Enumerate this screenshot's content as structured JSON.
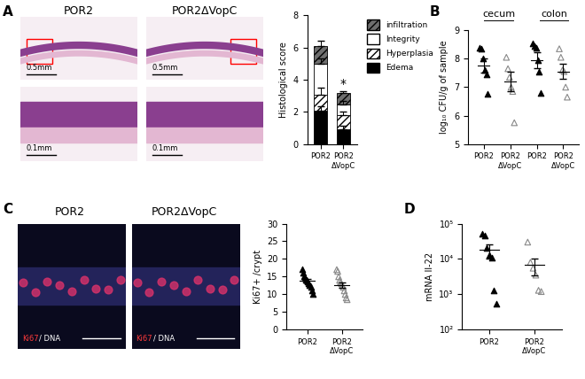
{
  "chart_data": [
    {
      "panel": "A",
      "type": "bar",
      "stacked": true,
      "ylabel": "Histological score",
      "categories": [
        "POR2",
        "POR2\nΔVopC"
      ],
      "series": [
        {
          "name": "Edema",
          "color": "#000000",
          "values": [
            2.05,
            0.9
          ],
          "errors": [
            0.3,
            0.25
          ]
        },
        {
          "name": "Hyperplasia",
          "color": "#ffffff",
          "values": [
            1.0,
            0.9
          ],
          "errors": [
            0.45,
            0.2
          ]
        },
        {
          "name": "Integrity",
          "color": "#ffffff",
          "values": [
            1.95,
            0.65
          ],
          "errors": [
            0.3,
            0.2
          ]
        },
        {
          "name": "infiltration",
          "color": "#6e6e6e",
          "values": [
            1.1,
            0.7
          ],
          "errors": [
            0.3,
            0.15
          ]
        }
      ],
      "annotations": [
        {
          "text": "*",
          "category": 1
        }
      ],
      "legend": "upper left",
      "ylim": [
        0,
        8
      ],
      "yticks": [
        0,
        2,
        4,
        6,
        8
      ]
    },
    {
      "panel": "B",
      "type": "scatter",
      "ylabel": "log₁₀ CFU/g of sample",
      "groups": [
        "cecum",
        "colon"
      ],
      "categories": [
        "POR2",
        "POR2\nΔVopC",
        "POR2",
        "POR2\nΔVopC"
      ],
      "values": [
        [
          8.4,
          8.35,
          8.0,
          7.6,
          7.45,
          6.75
        ],
        [
          8.05,
          7.65,
          7.35,
          7.0,
          6.85,
          5.75
        ],
        [
          8.55,
          8.45,
          8.4,
          7.95,
          7.55,
          6.8
        ],
        [
          8.35,
          8.05,
          7.6,
          7.55,
          7.0,
          6.65
        ]
      ],
      "means": [
        7.75,
        7.2,
        7.95,
        7.55
      ],
      "errors": [
        0.25,
        0.33,
        0.28,
        0.27
      ],
      "colors": [
        "#000000",
        "#888888",
        "#000000",
        "#888888"
      ],
      "marker": "^",
      "ylim": [
        5,
        9
      ],
      "yticks": [
        5,
        6,
        7,
        8,
        9
      ]
    },
    {
      "panel": "C",
      "type": "scatter",
      "ylabel": "Ki67+ /crypt",
      "categories": [
        "POR2",
        "POR2\nΔVopC"
      ],
      "values": [
        [
          17,
          16,
          15,
          14.5,
          14,
          14,
          13.5,
          13,
          12.5,
          12,
          11,
          10
        ],
        [
          17,
          16.5,
          15,
          14,
          13.5,
          13,
          12.5,
          12,
          11,
          10,
          9,
          8.5
        ]
      ],
      "means": [
        13.8,
        12.6
      ],
      "errors": [
        0.6,
        0.8
      ],
      "colors": [
        "#000000",
        "#888888"
      ],
      "marker": "^",
      "ylim": [
        0,
        30
      ],
      "yticks": [
        0,
        5,
        10,
        15,
        20,
        25,
        30
      ]
    },
    {
      "panel": "D",
      "type": "scatter",
      "ylabel": "mRNA Il-22",
      "log": "y",
      "categories": [
        "POR2",
        "POR2\nΔVopC"
      ],
      "values": [
        [
          52000,
          46000,
          20000,
          13000,
          11000,
          1300,
          550
        ],
        [
          30000,
          8000,
          5500,
          3500,
          1300,
          1200
        ]
      ],
      "means": [
        18000,
        7000
      ],
      "errors": [
        8000,
        3500
      ],
      "colors": [
        "#000000",
        "#888888"
      ],
      "marker": "^",
      "ylim": [
        100,
        100000
      ],
      "yticks": [
        {
          "value": 100,
          "label": "10²"
        },
        {
          "value": 1000,
          "label": "10³"
        },
        {
          "value": 10000,
          "label": "10⁴"
        },
        {
          "value": 100000,
          "label": "10⁵"
        }
      ]
    }
  ],
  "image_panels": {
    "A": {
      "columns": [
        "POR2",
        "POR2ΔVopC"
      ],
      "scale_bars": [
        "0.5mm",
        "0.1mm"
      ]
    },
    "C": {
      "columns": [
        "POR2",
        "POR2ΔVopC"
      ],
      "stain": [
        "Ki67",
        "/ DNA"
      ]
    }
  }
}
